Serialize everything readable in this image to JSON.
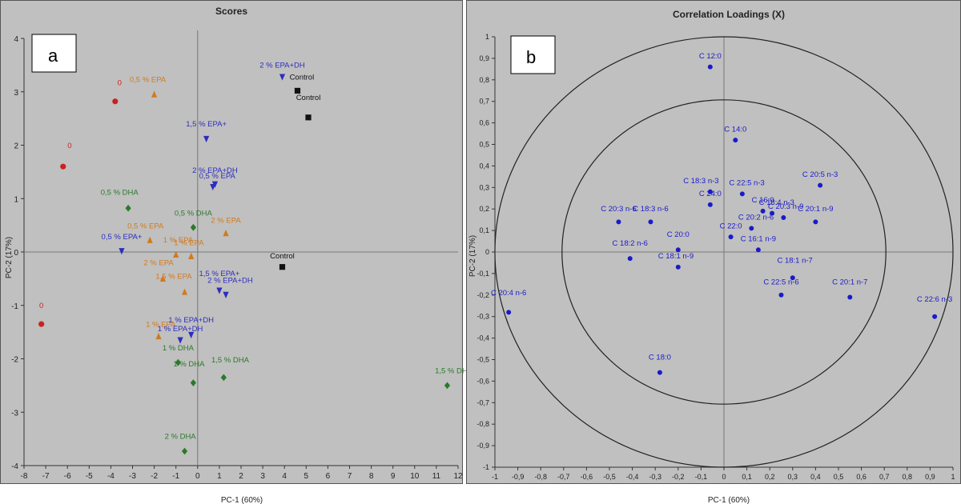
{
  "chart_data": [
    {
      "panel_label": "a",
      "type": "scatter",
      "title": "Scores",
      "xlabel": "PC-1 (60%)",
      "ylabel": "PC-2 (17%)",
      "xlim": [
        -8,
        12
      ],
      "ylim": [
        -4,
        4
      ],
      "xticks": [
        "-8",
        "-7",
        "-6",
        "-5",
        "-4",
        "-3",
        "-2",
        "-1",
        "0",
        "1",
        "2",
        "3",
        "4",
        "5",
        "6",
        "7",
        "8",
        "9",
        "10",
        "11",
        "12"
      ],
      "yticks": [
        "-4",
        "-3",
        "-2",
        "-1",
        "0",
        "1",
        "2",
        "3",
        "4"
      ],
      "background": "#c0c0c0",
      "series": [
        {
          "color": "#cc2020",
          "marker": "circle",
          "points": [
            {
              "x": -3.8,
              "y": 2.82,
              "label": "0",
              "lx": -3.6,
              "ly": 3.12
            },
            {
              "x": -6.2,
              "y": 1.6,
              "label": "0",
              "lx": -5.9,
              "ly": 1.95
            },
            {
              "x": -7.2,
              "y": -1.35,
              "label": "0",
              "lx": -7.2,
              "ly": -1.05
            }
          ]
        },
        {
          "color": "#d07a20",
          "marker": "triangle-up",
          "points": [
            {
              "x": -2.0,
              "y": 2.95,
              "label": "0,5 % EPA",
              "lx": -2.3,
              "ly": 3.18
            },
            {
              "x": -2.2,
              "y": 0.22,
              "label": "0,5 % EPA",
              "lx": -2.4,
              "ly": 0.44
            },
            {
              "x": 1.3,
              "y": 0.35,
              "label": "2 % EPA",
              "lx": 1.3,
              "ly": 0.55
            },
            {
              "x": -1.0,
              "y": -0.05,
              "label": "1 % EPA",
              "lx": -0.9,
              "ly": 0.18
            },
            {
              "x": -0.3,
              "y": -0.08,
              "label": "1 % EPA",
              "lx": -0.4,
              "ly": 0.13
            },
            {
              "x": -1.6,
              "y": -0.5,
              "label": "2 % EPA",
              "lx": -1.8,
              "ly": -0.25
            },
            {
              "x": -0.6,
              "y": -0.75,
              "label": "1,5 % EPA",
              "lx": -1.1,
              "ly": -0.5
            },
            {
              "x": -1.8,
              "y": -1.58,
              "label": "1 % EPA",
              "lx": -1.7,
              "ly": -1.4
            }
          ]
        },
        {
          "color": "#2d2dbf",
          "marker": "triangle-down",
          "points": [
            {
              "x": 3.9,
              "y": 3.28,
              "label": "2 % EPA+DH",
              "lx": 3.9,
              "ly": 3.45
            },
            {
              "x": 0.4,
              "y": 2.12,
              "label": "1,5 % EPA+",
              "lx": 0.4,
              "ly": 2.35
            },
            {
              "x": 0.7,
              "y": 1.22,
              "label": "2 % EPA+DH",
              "lx": 0.8,
              "ly": 1.48
            },
            {
              "x": 0.8,
              "y": 1.27,
              "label": "0,5 % EPA",
              "lx": 0.9,
              "ly": 1.38
            },
            {
              "x": -3.5,
              "y": 0.02,
              "label": "0,5 % EPA+",
              "lx": -3.5,
              "ly": 0.24
            },
            {
              "x": 1.0,
              "y": -0.72,
              "label": "1,5 % EPA+",
              "lx": 1.0,
              "ly": -0.45
            },
            {
              "x": 1.3,
              "y": -0.8,
              "label": "2 % EPA+DH",
              "lx": 1.5,
              "ly": -0.58
            },
            {
              "x": -0.3,
              "y": -1.55,
              "label": "1 % EPA+DH",
              "lx": -0.3,
              "ly": -1.32
            },
            {
              "x": -0.8,
              "y": -1.65,
              "label": "1 % EPA+DH",
              "lx": -0.8,
              "ly": -1.48
            }
          ]
        },
        {
          "color": "#2a7a2a",
          "marker": "diamond",
          "points": [
            {
              "x": -3.2,
              "y": 0.82,
              "label": "0,5 % DHA",
              "lx": -3.6,
              "ly": 1.07
            },
            {
              "x": -0.2,
              "y": 0.46,
              "label": "0,5 % DHA",
              "lx": -0.2,
              "ly": 0.68
            },
            {
              "x": -0.9,
              "y": -2.07,
              "label": "1 % DHA",
              "lx": -0.9,
              "ly": -1.84
            },
            {
              "x": -0.2,
              "y": -2.45,
              "label": "1 % DHA",
              "lx": -0.4,
              "ly": -2.14
            },
            {
              "x": 1.2,
              "y": -2.35,
              "label": "1,5 % DHA",
              "lx": 1.5,
              "ly": -2.07
            },
            {
              "x": 11.5,
              "y": -2.5,
              "label": "1,5 % DHA",
              "lx": 11.8,
              "ly": -2.27
            },
            {
              "x": -0.6,
              "y": -3.73,
              "label": "2 % DHA",
              "lx": -0.8,
              "ly": -3.5
            }
          ]
        },
        {
          "color": "#111111",
          "marker": "square",
          "label_color": "#111111",
          "points": [
            {
              "x": 4.6,
              "y": 3.02,
              "label": "Control",
              "lx": 4.8,
              "ly": 3.23
            },
            {
              "x": 5.1,
              "y": 2.52,
              "label": "Control",
              "lx": 5.1,
              "ly": 2.85
            },
            {
              "x": 3.9,
              "y": -0.28,
              "label": "Control",
              "lx": 3.9,
              "ly": -0.12
            }
          ]
        }
      ]
    },
    {
      "panel_label": "b",
      "type": "scatter",
      "title": "Correlation Loadings (X)",
      "xlabel": "PC-1 (60%)",
      "ylabel": "PC-2 (17%)",
      "xlim": [
        -1,
        1
      ],
      "ylim": [
        -1,
        1
      ],
      "xticks": [
        "-1",
        "-0,9",
        "-0,8",
        "-0,7",
        "-0,6",
        "-0,5",
        "-0,4",
        "-0,3",
        "-0,2",
        "-0,1",
        "0",
        "0,1",
        "0,2",
        "0,3",
        "0,4",
        "0,5",
        "0,6",
        "0,7",
        "0,8",
        "0,9",
        "1"
      ],
      "yticks": [
        "-1",
        "-0,9",
        "-0,8",
        "-0,7",
        "-0,6",
        "-0,5",
        "-0,4",
        "-0,3",
        "-0,2",
        "-0,1",
        "0",
        "0,1",
        "0,2",
        "0,3",
        "0,4",
        "0,5",
        "0,6",
        "0,7",
        "0,8",
        "0,9",
        "1"
      ],
      "circles": [
        1.0,
        0.7071
      ],
      "background": "#c0c0c0",
      "point_color": "#1a1acc",
      "points": [
        {
          "x": -0.06,
          "y": 0.86,
          "label": "C 12:0",
          "lx": -0.06,
          "ly": 0.9
        },
        {
          "x": 0.05,
          "y": 0.52,
          "label": "C 14:0",
          "lx": 0.05,
          "ly": 0.56
        },
        {
          "x": 0.42,
          "y": 0.31,
          "label": "C 20:5 n-3",
          "lx": 0.42,
          "ly": 0.35
        },
        {
          "x": -0.06,
          "y": 0.28,
          "label": "C 18:3 n-3",
          "lx": -0.1,
          "ly": 0.32
        },
        {
          "x": 0.08,
          "y": 0.27,
          "label": "C 22:5 n-3",
          "lx": 0.1,
          "ly": 0.31
        },
        {
          "x": -0.06,
          "y": 0.22,
          "label": "C 24:0",
          "lx": -0.06,
          "ly": 0.26
        },
        {
          "x": 0.17,
          "y": 0.19,
          "label": "C 16:0",
          "lx": 0.17,
          "ly": 0.23
        },
        {
          "x": 0.21,
          "y": 0.18,
          "label": "C 18:4 n-3",
          "lx": 0.23,
          "ly": 0.22
        },
        {
          "x": 0.26,
          "y": 0.16,
          "label": "C 20:3 n-9",
          "lx": 0.27,
          "ly": 0.2
        },
        {
          "x": 0.4,
          "y": 0.14,
          "label": "C 20:1 n-9",
          "lx": 0.4,
          "ly": 0.19
        },
        {
          "x": -0.46,
          "y": 0.14,
          "label": "C 20:3 n-6",
          "lx": -0.46,
          "ly": 0.19
        },
        {
          "x": -0.32,
          "y": 0.14,
          "label": "C 18:3 n-6",
          "lx": -0.32,
          "ly": 0.19
        },
        {
          "x": 0.12,
          "y": 0.11,
          "label": "C 20:2 n-6",
          "lx": 0.14,
          "ly": 0.15
        },
        {
          "x": 0.03,
          "y": 0.07,
          "label": "C 22:0",
          "lx": 0.03,
          "ly": 0.11
        },
        {
          "x": 0.15,
          "y": 0.01,
          "label": "C 16:1 n-9",
          "lx": 0.15,
          "ly": 0.05
        },
        {
          "x": -0.2,
          "y": -0.07,
          "label": "C 18:1 n-9",
          "lx": -0.21,
          "ly": -0.03
        },
        {
          "x": -0.41,
          "y": -0.03,
          "label": "C 18:2 n-6",
          "lx": -0.41,
          "ly": 0.03
        },
        {
          "x": -0.2,
          "y": 0.01,
          "label": "C 20:0",
          "lx": -0.2,
          "ly": 0.07
        },
        {
          "x": 0.3,
          "y": -0.12,
          "label": "C 18:1 n-7",
          "lx": 0.31,
          "ly": -0.05
        },
        {
          "x": 0.25,
          "y": -0.2,
          "label": "C 22:5 n-6",
          "lx": 0.25,
          "ly": -0.15
        },
        {
          "x": 0.55,
          "y": -0.21,
          "label": "C 20:1 n-7",
          "lx": 0.55,
          "ly": -0.15
        },
        {
          "x": -0.94,
          "y": -0.28,
          "label": "C 20:4 n-6",
          "lx": -0.94,
          "ly": -0.2
        },
        {
          "x": 0.92,
          "y": -0.3,
          "label": "C 22:6 n-3",
          "lx": 0.92,
          "ly": -0.23
        },
        {
          "x": -0.28,
          "y": -0.56,
          "label": "C 18:0",
          "lx": -0.28,
          "ly": -0.5
        }
      ]
    }
  ]
}
